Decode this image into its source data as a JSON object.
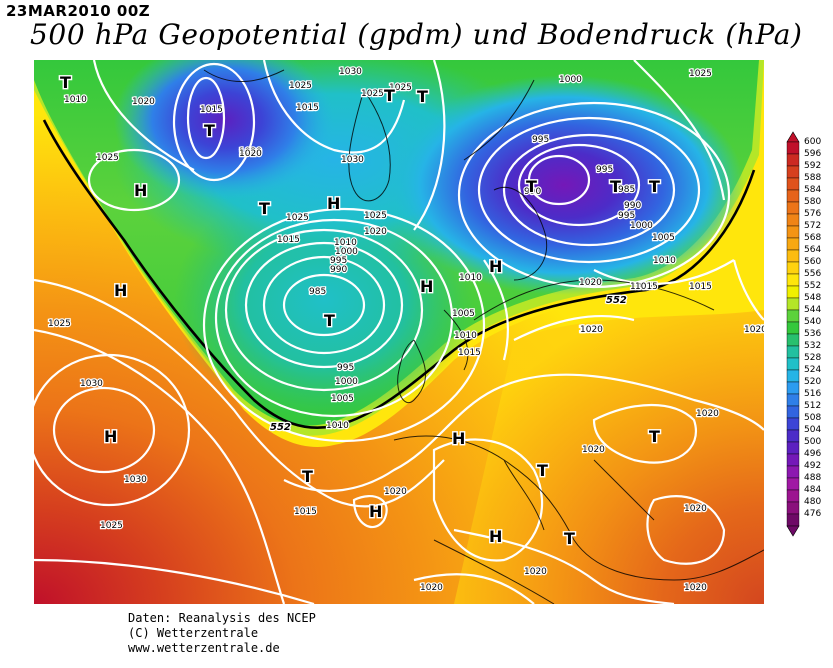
{
  "header": {
    "datetime": "23MAR2010 00Z",
    "title": "500 hPa Geopotential (gpdm) und Bodendruck (hPa)"
  },
  "legend": {
    "values": [
      "600",
      "596",
      "592",
      "588",
      "584",
      "580",
      "576",
      "572",
      "568",
      "564",
      "560",
      "556",
      "552",
      "548",
      "544",
      "540",
      "536",
      "532",
      "528",
      "524",
      "520",
      "516",
      "512",
      "508",
      "504",
      "500",
      "496",
      "492",
      "488",
      "484",
      "480",
      "476"
    ],
    "colors": [
      "#c0102a",
      "#cc2a22",
      "#d6401e",
      "#e0521c",
      "#e6631a",
      "#ec7418",
      "#f08416",
      "#f49414",
      "#f8a812",
      "#fcbc10",
      "#ffd20e",
      "#ffe60c",
      "#f0f000",
      "#b4e628",
      "#5cd23c",
      "#34c83c",
      "#28c06e",
      "#22c0a0",
      "#20c0c8",
      "#26b4e6",
      "#2c9cf0",
      "#2f7fe8",
      "#3264e0",
      "#3c44d6",
      "#4c2cc8",
      "#5c20c0",
      "#7418b8",
      "#8c18b0",
      "#a018a4",
      "#9c1490",
      "#8a107c",
      "#6e0a66"
    ]
  },
  "isobars": {
    "labels": [
      "1010",
      "1020",
      "1025",
      "1015",
      "1020",
      "1030",
      "1025",
      "1025",
      "1015",
      "1020",
      "1025",
      "1030",
      "1025",
      "1015",
      "1020",
      "1025",
      "1010",
      "1000",
      "995",
      "990",
      "985",
      "1010",
      "1005",
      "1010",
      "1015",
      "995",
      "1000",
      "1005",
      "1010",
      "1015",
      "1020",
      "1025",
      "1030",
      "1030",
      "1025",
      "1000",
      "995",
      "995",
      "990",
      "985",
      "990",
      "995",
      "1000",
      "1005",
      "1010",
      "1015",
      "1020",
      "1025",
      "1015",
      "1020",
      "1020",
      "1020",
      "1020",
      "1020",
      "1020",
      "1015",
      "1020",
      "1015",
      "1025",
      "1020"
    ]
  },
  "pressure_centers": [
    "T",
    "H",
    "T",
    "T",
    "H",
    "T",
    "T",
    "H",
    "H",
    "T",
    "T",
    "H",
    "H",
    "T",
    "H",
    "H",
    "T",
    "T",
    "H",
    "T",
    "T",
    "T",
    "H"
  ],
  "contour_label": [
    "552",
    "552"
  ],
  "footer": {
    "line1": "Daten: Reanalysis des NCEP",
    "line2": "(C) Wetterzentrale",
    "line3": "www.wetterzentrale.de"
  }
}
